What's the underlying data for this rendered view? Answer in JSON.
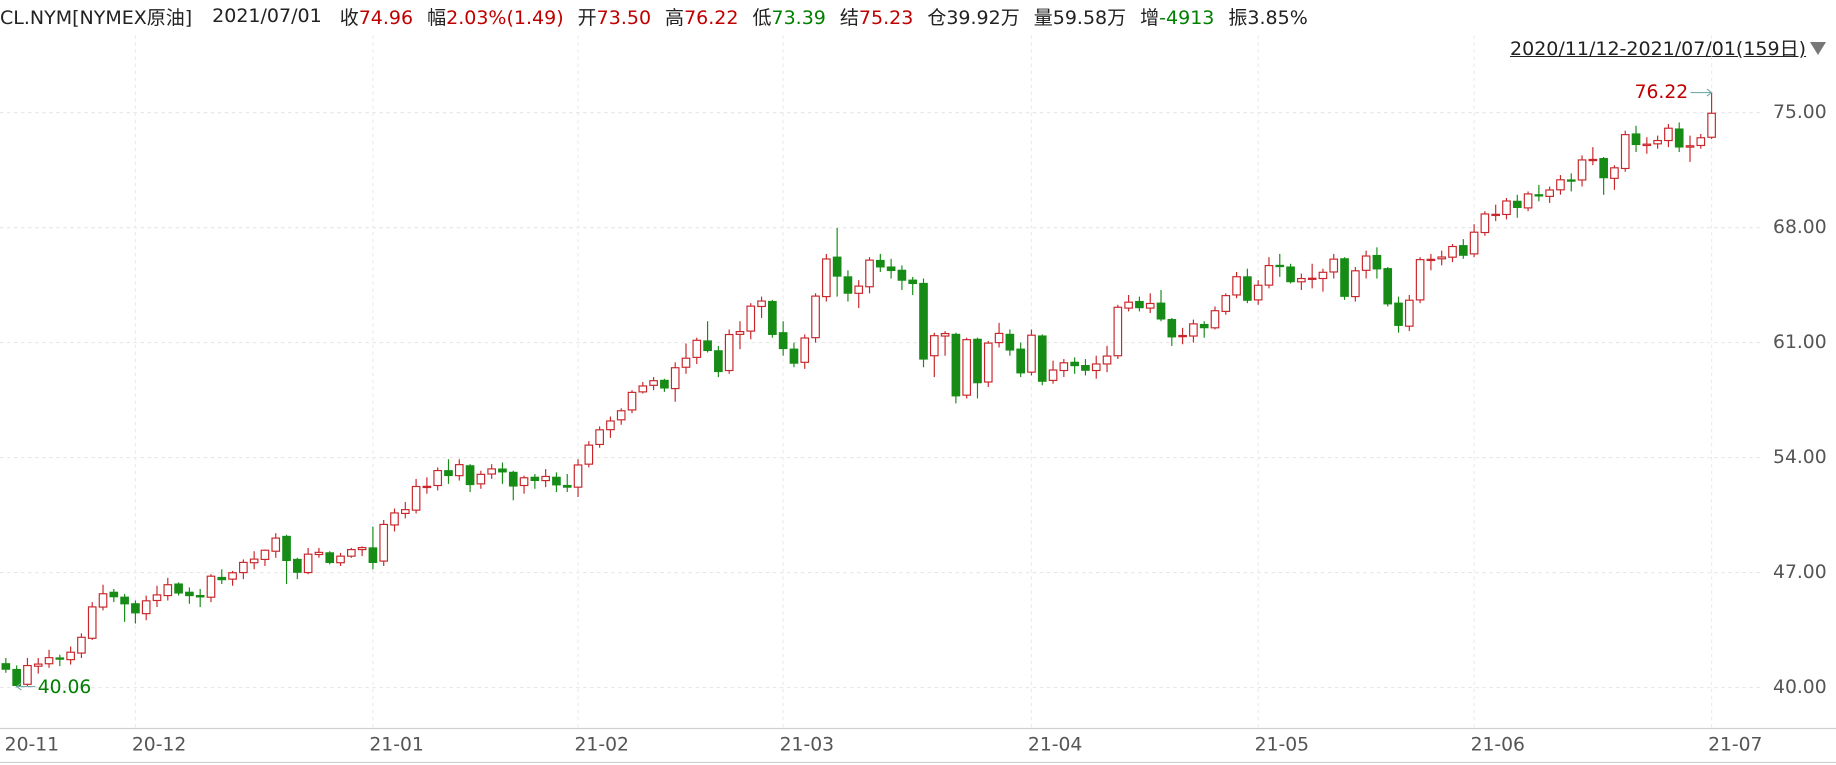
{
  "header": {
    "symbol": "CL.NYM[NYMEX原油]",
    "date": "2021/07/01",
    "fields": [
      {
        "label": "收",
        "value": "74.96",
        "color": "#c00000"
      },
      {
        "label": "幅",
        "value": "2.03%(1.49)",
        "color": "#c00000"
      },
      {
        "label": "开",
        "value": "73.50",
        "color": "#c00000"
      },
      {
        "label": "高",
        "value": "76.22",
        "color": "#c00000"
      },
      {
        "label": "低",
        "value": "73.39",
        "color": "#008000"
      },
      {
        "label": "结",
        "value": "75.23",
        "color": "#c00000"
      },
      {
        "label": "仓",
        "value": "39.92万",
        "color": "#222222"
      },
      {
        "label": "量",
        "value": "59.58万",
        "color": "#222222"
      },
      {
        "label": "增",
        "value": "-4913",
        "color": "#008000"
      },
      {
        "label": "振",
        "value": "3.85%",
        "color": "#222222"
      }
    ],
    "range": "2020/11/12-2021/07/01(159日)"
  },
  "chart_data": {
    "type": "candlestick",
    "up_color": "#c8262b",
    "down_color": "#168c16",
    "max_color": "#c00000",
    "min_color": "#008000",
    "grid": true,
    "ylim": [
      37.65,
      78.28
    ],
    "yticks": [
      {
        "value": 40,
        "label": "40.00"
      },
      {
        "value": 47,
        "label": "47.00"
      },
      {
        "value": 54,
        "label": "54.00"
      },
      {
        "value": 61,
        "label": "61.00"
      },
      {
        "value": 68,
        "label": "68.00"
      },
      {
        "value": 75,
        "label": "75.00"
      }
    ],
    "categories": [
      "20-11",
      null,
      null,
      null,
      null,
      null,
      null,
      null,
      null,
      null,
      null,
      null,
      "20-12",
      null,
      null,
      null,
      null,
      null,
      null,
      null,
      null,
      null,
      null,
      null,
      null,
      null,
      null,
      null,
      null,
      null,
      null,
      null,
      null,
      null,
      "21-01",
      null,
      null,
      null,
      null,
      null,
      null,
      null,
      null,
      null,
      null,
      null,
      null,
      null,
      null,
      null,
      null,
      null,
      null,
      "21-02",
      null,
      null,
      null,
      null,
      null,
      null,
      null,
      null,
      null,
      null,
      null,
      null,
      null,
      null,
      null,
      null,
      null,
      null,
      "21-03",
      null,
      null,
      null,
      null,
      null,
      null,
      null,
      null,
      null,
      null,
      null,
      null,
      null,
      null,
      null,
      null,
      null,
      null,
      null,
      null,
      null,
      null,
      "21-04",
      null,
      null,
      null,
      null,
      null,
      null,
      null,
      null,
      null,
      null,
      null,
      null,
      null,
      null,
      null,
      null,
      null,
      null,
      null,
      null,
      "21-05",
      null,
      null,
      null,
      null,
      null,
      null,
      null,
      null,
      null,
      null,
      null,
      null,
      null,
      null,
      null,
      null,
      null,
      null,
      null,
      "21-06",
      null,
      null,
      null,
      null,
      null,
      null,
      null,
      null,
      null,
      null,
      null,
      null,
      null,
      null,
      null,
      null,
      null,
      null,
      null,
      null,
      null,
      "21-07"
    ],
    "open": [
      41.45,
      41.1,
      40.2,
      41.3,
      41.45,
      41.8,
      41.7,
      42.1,
      43.0,
      44.9,
      45.8,
      45.5,
      45.1,
      44.5,
      45.3,
      45.6,
      46.3,
      45.8,
      45.6,
      45.5,
      46.7,
      46.6,
      47.0,
      47.6,
      47.8,
      48.3,
      49.2,
      47.8,
      47.0,
      48.1,
      48.2,
      47.6,
      48.0,
      48.4,
      48.5,
      47.7,
      49.9,
      50.6,
      50.8,
      52.2,
      52.3,
      53.2,
      52.9,
      53.5,
      52.4,
      53.0,
      53.3,
      53.1,
      52.3,
      52.8,
      52.6,
      52.8,
      52.3,
      52.2,
      53.6,
      54.8,
      55.7,
      56.3,
      56.9,
      58.0,
      58.4,
      58.7,
      58.2,
      59.5,
      60.1,
      61.1,
      60.5,
      59.3,
      61.5,
      61.7,
      63.2,
      63.5,
      61.6,
      60.6,
      59.8,
      61.3,
      63.8,
      66.2,
      65.0,
      64.0,
      64.4,
      66.0,
      65.6,
      65.4,
      64.8,
      64.6,
      60.2,
      61.4,
      61.5,
      57.8,
      61.2,
      58.6,
      61.0,
      61.5,
      60.6,
      59.2,
      61.4,
      58.7,
      59.3,
      59.8,
      59.6,
      59.3,
      59.7,
      60.2,
      63.1,
      63.5,
      63.1,
      63.4,
      62.4,
      61.4,
      61.4,
      62.1,
      61.9,
      62.9,
      63.9,
      65.0,
      63.6,
      64.5,
      65.7,
      65.6,
      64.7,
      64.9,
      64.9,
      65.3,
      66.1,
      63.8,
      65.4,
      66.3,
      65.5,
      63.4,
      62.0,
      63.6,
      66.0,
      66.1,
      66.2,
      66.9,
      66.4,
      67.7,
      68.8,
      68.8,
      69.6,
      69.2,
      70.0,
      69.9,
      70.3,
      70.9,
      70.9,
      72.1,
      72.2,
      71.0,
      71.6,
      73.7,
      73.0,
      73.1,
      73.3,
      74.0,
      72.9,
      73.0,
      73.5
    ],
    "high": [
      41.8,
      41.35,
      41.8,
      41.8,
      42.3,
      42.0,
      42.5,
      43.3,
      45.2,
      46.26,
      46.0,
      45.7,
      45.3,
      45.6,
      46.2,
      46.68,
      46.4,
      46.1,
      46.0,
      46.9,
      47.2,
      47.1,
      47.8,
      48.3,
      48.4,
      49.4,
      49.3,
      47.9,
      48.5,
      48.5,
      48.3,
      48.2,
      48.5,
      48.6,
      49.8,
      50.2,
      50.9,
      51.3,
      52.7,
      52.8,
      53.4,
      53.9,
      53.9,
      53.6,
      53.2,
      53.6,
      53.7,
      53.2,
      52.9,
      53.0,
      53.3,
      53.1,
      53.0,
      53.9,
      55.0,
      55.9,
      56.5,
      57.0,
      58.1,
      58.6,
      58.9,
      58.8,
      59.8,
      60.95,
      61.3,
      62.3,
      60.8,
      61.8,
      62.3,
      63.4,
      63.8,
      63.6,
      62.3,
      61.0,
      61.5,
      64.0,
      66.4,
      67.98,
      65.4,
      64.8,
      66.2,
      66.4,
      66.1,
      65.7,
      65.0,
      64.9,
      61.6,
      61.7,
      61.6,
      61.3,
      61.3,
      61.1,
      62.2,
      61.8,
      61.0,
      61.8,
      61.5,
      59.9,
      60.0,
      60.1,
      60.0,
      60.2,
      60.8,
      63.3,
      63.9,
      63.8,
      64.0,
      64.2,
      62.5,
      61.9,
      62.4,
      62.3,
      63.2,
      64.0,
      65.3,
      65.5,
      64.8,
      66.2,
      66.4,
      65.8,
      65.2,
      65.8,
      65.5,
      66.4,
      66.2,
      65.6,
      66.6,
      66.8,
      65.6,
      63.8,
      63.9,
      66.2,
      66.4,
      66.6,
      67.0,
      67.3,
      68.2,
      69.0,
      69.4,
      69.8,
      70.0,
      70.2,
      70.6,
      70.5,
      71.2,
      71.3,
      72.4,
      72.9,
      72.3,
      71.8,
      73.9,
      74.2,
      73.5,
      73.6,
      74.3,
      74.4,
      73.6,
      73.7,
      76.22
    ],
    "low": [
      40.9,
      40.06,
      40.1,
      40.85,
      41.2,
      41.3,
      41.4,
      41.8,
      42.9,
      44.7,
      45.2,
      44.0,
      43.9,
      44.1,
      44.9,
      45.3,
      45.6,
      45.1,
      44.9,
      45.2,
      46.3,
      46.2,
      46.6,
      47.2,
      47.4,
      47.9,
      46.3,
      46.6,
      46.9,
      47.9,
      47.5,
      47.4,
      47.9,
      48.0,
      47.2,
      47.4,
      49.5,
      50.3,
      50.6,
      51.8,
      52.0,
      52.4,
      52.6,
      51.9,
      52.1,
      52.7,
      52.4,
      51.4,
      51.8,
      52.1,
      52.2,
      51.9,
      51.9,
      51.6,
      53.4,
      54.6,
      55.2,
      56.0,
      56.7,
      57.9,
      58.1,
      58.0,
      57.4,
      59.1,
      59.7,
      60.4,
      58.9,
      59.1,
      60.6,
      61.2,
      62.5,
      61.3,
      60.2,
      59.5,
      59.4,
      61.0,
      63.5,
      63.8,
      63.5,
      63.1,
      64.0,
      65.3,
      64.9,
      64.2,
      63.9,
      59.5,
      58.9,
      60.2,
      57.3,
      57.6,
      57.6,
      58.3,
      60.7,
      60.2,
      58.9,
      59.0,
      58.4,
      58.5,
      58.9,
      59.1,
      59.0,
      58.8,
      59.2,
      60.0,
      62.9,
      62.9,
      62.8,
      62.3,
      60.8,
      60.9,
      61.0,
      61.3,
      61.8,
      62.7,
      63.7,
      63.4,
      63.3,
      64.3,
      65.0,
      64.6,
      64.2,
      64.3,
      64.1,
      64.9,
      63.6,
      63.5,
      64.9,
      64.9,
      63.2,
      61.6,
      61.7,
      63.4,
      65.4,
      65.7,
      65.9,
      66.1,
      66.2,
      67.5,
      68.4,
      68.5,
      68.6,
      69.0,
      69.6,
      69.5,
      70.0,
      70.2,
      70.5,
      71.8,
      70.0,
      70.3,
      71.4,
      72.6,
      72.5,
      72.8,
      72.9,
      72.6,
      72.0,
      72.8,
      73.39
    ],
    "close": [
      41.12,
      40.13,
      41.34,
      41.43,
      41.82,
      41.74,
      42.15,
      43.06,
      44.91,
      45.71,
      45.53,
      45.1,
      44.55,
      45.28,
      45.64,
      46.26,
      45.76,
      45.6,
      45.52,
      46.78,
      46.57,
      46.99,
      47.62,
      47.82,
      48.36,
      49.1,
      47.74,
      47.02,
      48.12,
      48.23,
      47.62,
      48.0,
      48.4,
      48.52,
      47.62,
      49.93,
      50.63,
      50.83,
      52.24,
      52.25,
      53.21,
      52.91,
      53.57,
      52.36,
      52.98,
      53.31,
      53.13,
      52.27,
      52.77,
      52.61,
      52.85,
      52.34,
      52.2,
      53.55,
      54.76,
      55.69,
      56.23,
      56.85,
      57.97,
      58.36,
      58.68,
      58.24,
      59.47,
      60.05,
      61.14,
      60.52,
      59.24,
      61.49,
      61.67,
      63.22,
      63.53,
      61.5,
      60.64,
      59.75,
      61.28,
      63.83,
      66.09,
      65.05,
      64.01,
      64.44,
      66.02,
      65.61,
      65.39,
      64.8,
      64.6,
      60.0,
      61.42,
      61.55,
      57.76,
      61.18,
      58.56,
      60.97,
      61.56,
      60.55,
      59.16,
      61.45,
      58.65,
      59.33,
      59.77,
      59.6,
      59.32,
      59.7,
      60.18,
      63.15,
      63.46,
      63.13,
      63.38,
      62.44,
      61.35,
      61.43,
      62.14,
      61.91,
      62.94,
      63.86,
      65.01,
      63.58,
      64.49,
      65.69,
      65.63,
      64.71,
      64.9,
      64.92,
      65.28,
      66.08,
      63.82,
      65.37,
      66.27,
      65.49,
      63.36,
      62.05,
      63.58,
      66.05,
      66.07,
      66.21,
      66.85,
      66.32,
      67.72,
      68.83,
      68.81,
      69.62,
      69.23,
      70.05,
      69.96,
      70.29,
      70.91,
      70.88,
      72.12,
      72.15,
      71.04,
      71.64,
      73.66,
      73.06,
      73.08,
      73.3,
      74.05,
      72.91,
      72.98,
      73.47,
      74.96
    ]
  }
}
